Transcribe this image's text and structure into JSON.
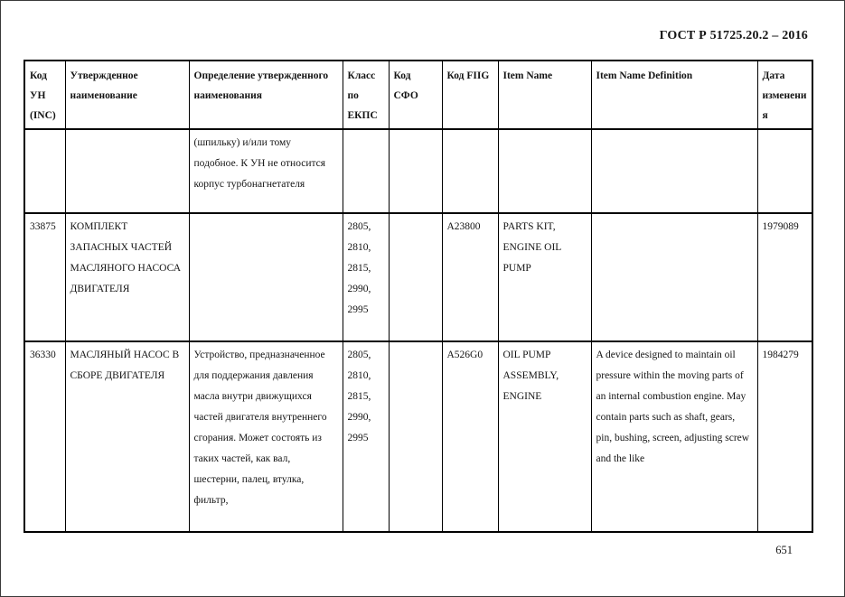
{
  "page": {
    "doc_title": "ГОСТ Р 51725.20.2 – 2016",
    "page_number": "651"
  },
  "table": {
    "columns": [
      {
        "label": "Код УН (INC)"
      },
      {
        "label": "Утвержденное наименование"
      },
      {
        "label": "Определение утвержденного наименования"
      },
      {
        "label": "Класс по ЕКПС"
      },
      {
        "label": "Код СФО"
      },
      {
        "label": "Код FIIG"
      },
      {
        "label": "Item Name"
      },
      {
        "label": "Item Name Definition"
      },
      {
        "label": "Дата изменения"
      }
    ],
    "rows": [
      {
        "inc_code": "",
        "approved_name": "",
        "approved_definition": "(шпильку) и/или тому подобное. К УН не относится корпус турбонагнетателя",
        "ekps_class": "",
        "sfo_code": "",
        "fiig_code": "",
        "item_name": "",
        "item_name_definition": "",
        "change_date": ""
      },
      {
        "inc_code": "33875",
        "approved_name": "КОМПЛЕКТ ЗАПАСНЫХ ЧАСТЕЙ МАСЛЯНОГО НАСОСА ДВИГАТЕЛЯ",
        "approved_definition": "",
        "ekps_class": "2805, 2810, 2815, 2990, 2995",
        "sfo_code": "",
        "fiig_code": "A23800",
        "item_name": "PARTS KIT, ENGINE OIL PUMP",
        "item_name_definition": "",
        "change_date": "1979089"
      },
      {
        "inc_code": "36330",
        "approved_name": "МАСЛЯНЫЙ НАСОС В СБОРЕ ДВИГАТЕЛЯ",
        "approved_definition": "Устройство, предназначенное для поддержания давления масла внутри движущихся частей двигателя внутреннего сгорания. Может состоять из таких частей, как вал, шестерни, палец, втулка, фильтр,",
        "ekps_class": "2805, 2810, 2815, 2990, 2995",
        "sfo_code": "",
        "fiig_code": "A526G0",
        "item_name": "OIL PUMP ASSEMBLY, ENGINE",
        "item_name_definition": "A device designed to maintain oil pressure within the moving parts of an internal combustion engine. May contain parts such as shaft, gears, pin, bushing, screen, adjusting screw and the like",
        "change_date": "1984279"
      }
    ]
  }
}
